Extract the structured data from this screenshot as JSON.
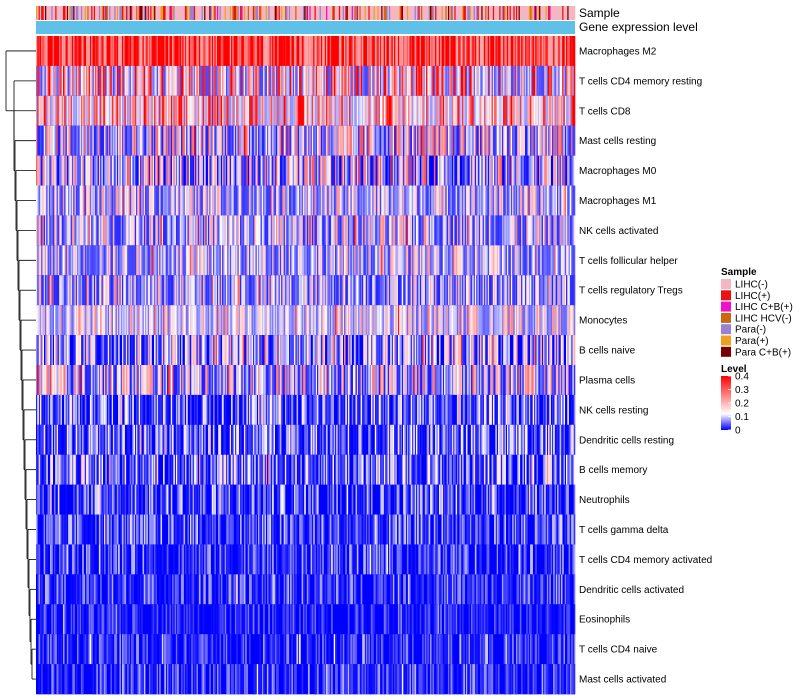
{
  "chart_data": {
    "type": "heatmap",
    "annotation_labels": {
      "sample": "Sample",
      "expression": "Gene expression level"
    },
    "rows": [
      {
        "label": "Macrophages M2",
        "mean": 0.3,
        "spread": 0.12
      },
      {
        "label": "T cells CD4 memory resting",
        "mean": 0.12,
        "spread": 0.12
      },
      {
        "label": "T cells CD8",
        "mean": 0.14,
        "spread": 0.1
      },
      {
        "label": "Mast cells resting",
        "mean": 0.08,
        "spread": 0.09
      },
      {
        "label": "Macrophages M0",
        "mean": 0.06,
        "spread": 0.09
      },
      {
        "label": "Macrophages M1",
        "mean": 0.07,
        "spread": 0.06
      },
      {
        "label": "NK cells activated",
        "mean": 0.07,
        "spread": 0.07
      },
      {
        "label": "T cells follicular helper",
        "mean": 0.07,
        "spread": 0.06
      },
      {
        "label": "T cells regulatory  Tregs",
        "mean": 0.06,
        "spread": 0.06
      },
      {
        "label": "Monocytes",
        "mean": 0.09,
        "spread": 0.06
      },
      {
        "label": "B cells naive",
        "mean": 0.04,
        "spread": 0.07
      },
      {
        "label": "Plasma cells",
        "mean": 0.07,
        "spread": 0.08
      },
      {
        "label": "NK cells resting",
        "mean": 0.02,
        "spread": 0.05
      },
      {
        "label": "Dendritic cells resting",
        "mean": 0.02,
        "spread": 0.05
      },
      {
        "label": "B cells memory",
        "mean": 0.025,
        "spread": 0.05
      },
      {
        "label": "Neutrophils",
        "mean": 0.01,
        "spread": 0.04
      },
      {
        "label": "T cells gamma delta",
        "mean": 0.008,
        "spread": 0.035
      },
      {
        "label": "T cells CD4 memory activated",
        "mean": 0.006,
        "spread": 0.03
      },
      {
        "label": "Dendritic cells activated",
        "mean": 0.005,
        "spread": 0.03
      },
      {
        "label": "Eosinophils",
        "mean": 0.003,
        "spread": 0.02
      },
      {
        "label": "T cells CD4 naive",
        "mean": 0.004,
        "spread": 0.025
      },
      {
        "label": "Mast cells activated",
        "mean": 0.005,
        "spread": 0.03
      }
    ],
    "sample_groups": [
      {
        "name": "LIHC(-)",
        "color": "#f4b6c2",
        "share": 0.55
      },
      {
        "name": "LIHC(+)",
        "color": "#ee1111",
        "share": 0.12
      },
      {
        "name": "LIHC C+B(+)",
        "color": "#ee11cc",
        "share": 0.03
      },
      {
        "name": "LIHC HCV(-)",
        "color": "#cc6611",
        "share": 0.05
      },
      {
        "name": "Para(-)",
        "color": "#9a7fd8",
        "share": 0.12
      },
      {
        "name": "Para(+)",
        "color": "#f0a020",
        "share": 0.08
      },
      {
        "name": "Para C+B(+)",
        "color": "#7a0000",
        "share": 0.05
      }
    ],
    "expression_color": "#5fc0e8",
    "legend_sample_title": "Sample",
    "legend_level_title": "Level",
    "level_scale": {
      "min": 0,
      "max": 0.4,
      "ticks": [
        "0.4",
        "0.3",
        "0.2",
        "0.1",
        "0"
      ],
      "colors": [
        "#0000ff",
        "#ffffff",
        "#ff0000"
      ],
      "midpoint": 0.12
    },
    "n_samples": 420
  }
}
